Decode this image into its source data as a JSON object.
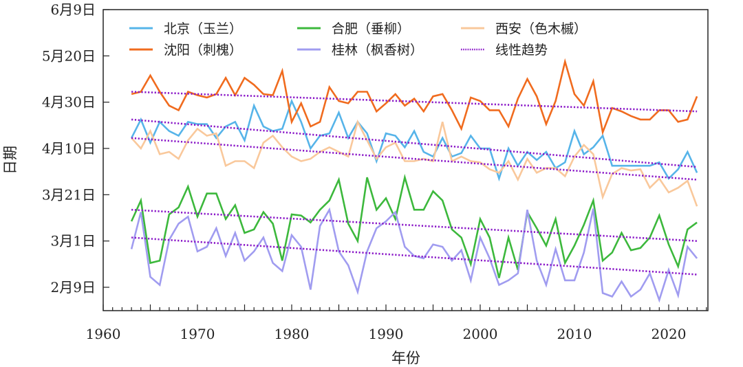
{
  "chart_data": {
    "type": "line",
    "title": "",
    "xlabel": "年份",
    "ylabel": "日期",
    "xlim": [
      1960,
      2024.2
    ],
    "ylim_days_since_feb9": [
      -4,
      120
    ],
    "y_unit": "days since 2月9日",
    "x_ticks": [
      1960,
      1970,
      1980,
      1990,
      2000,
      2010,
      2020
    ],
    "x_tick_labels": [
      "1960",
      "1970",
      "1980",
      "1990",
      "2000",
      "2010",
      "2020"
    ],
    "y_ticks": [
      0,
      20,
      40,
      60,
      80,
      100,
      120
    ],
    "y_tick_labels": [
      "2月9日",
      "3月1日",
      "3月21日",
      "4月10日",
      "4月30日",
      "5月20日",
      "6月9日"
    ],
    "grid": false,
    "legend_position": "top",
    "x": [
      1963,
      1964,
      1965,
      1966,
      1967,
      1968,
      1969,
      1970,
      1971,
      1972,
      1973,
      1974,
      1975,
      1976,
      1977,
      1978,
      1979,
      1980,
      1981,
      1982,
      1983,
      1984,
      1985,
      1986,
      1987,
      1988,
      1989,
      1990,
      1991,
      1992,
      1993,
      1994,
      1995,
      1996,
      1997,
      1998,
      1999,
      2000,
      2001,
      2002,
      2003,
      2004,
      2005,
      2006,
      2007,
      2008,
      2009,
      2010,
      2011,
      2012,
      2013,
      2014,
      2015,
      2016,
      2017,
      2018,
      2019,
      2020,
      2021,
      2022,
      2023
    ],
    "series": [
      {
        "name": "北京（玉兰）",
        "color": "#56b4e9",
        "style": "solid",
        "values": [
          64.5,
          72.5,
          62.5,
          71.5,
          67.5,
          65.5,
          71.5,
          70.5,
          70.5,
          64.5,
          69.5,
          71.5,
          63.5,
          78.5,
          69.5,
          67.5,
          68.5,
          80.5,
          71.5,
          60,
          65.5,
          66.5,
          75.5,
          64.5,
          71.5,
          66.5,
          54.5,
          66.5,
          65.5,
          60.5,
          67.5,
          58.5,
          56.5,
          64.5,
          56.5,
          58,
          65.5,
          60,
          60,
          47,
          60,
          52.5,
          58.5,
          55,
          58.5,
          51.5,
          54,
          67.5,
          57.5,
          60.5,
          65.5,
          52.5,
          52.5,
          52.5,
          52.5,
          52.5,
          54,
          47,
          51,
          58.5,
          49.5
        ]
      },
      {
        "name": "合肥（垂柳）",
        "color": "#3cb83c",
        "style": "solid",
        "values": [
          28.5,
          37.5,
          10.5,
          11.5,
          31.5,
          34.5,
          43.5,
          30.5,
          40.5,
          40.5,
          29.5,
          35.5,
          23.5,
          25,
          32.5,
          27.5,
          11.5,
          31.5,
          31,
          28,
          33.5,
          37.5,
          46.5,
          27.5,
          20,
          47.5,
          33.5,
          38.5,
          29.5,
          47.5,
          33.5,
          33.5,
          41.5,
          37.5,
          25,
          21.5,
          10,
          29.5,
          21.5,
          4,
          21.5,
          7.5,
          32.5,
          25.5,
          18,
          29.5,
          10.5,
          18,
          27,
          37.5,
          11.5,
          15,
          23.5,
          16,
          17,
          21.5,
          31,
          18.5,
          9,
          25,
          28
        ]
      },
      {
        "name": "西安（色木槭）",
        "color": "#f9c89b",
        "style": "solid",
        "values": [
          64.5,
          60,
          67.5,
          57.5,
          58.5,
          55.5,
          63.5,
          68.5,
          65.5,
          66.5,
          52.5,
          54.5,
          54.5,
          51.5,
          62.5,
          65.5,
          60.5,
          56.5,
          54.5,
          55.5,
          58.5,
          60.5,
          58.5,
          56.5,
          71.5,
          63.5,
          55.5,
          60.5,
          62.5,
          54.5,
          54.5,
          55.5,
          54.5,
          71.5,
          54.5,
          56.5,
          54.5,
          54,
          51,
          49.5,
          54.5,
          46.5,
          55.5,
          49.5,
          51.5,
          51.5,
          48,
          56.5,
          61.5,
          57.5,
          39,
          49,
          51.5,
          50.5,
          51,
          43,
          47,
          41,
          43,
          46,
          35
        ]
      },
      {
        "name": "沈阳（刺槐）",
        "color": "#f06b1e",
        "style": "solid",
        "values": [
          83.5,
          84.5,
          91.5,
          84.5,
          78.5,
          76.5,
          84.5,
          83,
          82,
          83.5,
          90.5,
          83,
          90.5,
          87.5,
          83.5,
          83,
          93.5,
          71.5,
          79.5,
          69.5,
          71.5,
          86.5,
          80.5,
          79.5,
          84.5,
          84.5,
          76,
          79.5,
          83.5,
          78.5,
          81.5,
          76,
          82.5,
          83.5,
          76.5,
          68.5,
          82,
          80.5,
          76.5,
          76.5,
          69.5,
          81.5,
          90,
          82.5,
          70.5,
          80.5,
          97.5,
          83.5,
          78.5,
          89,
          67,
          77.5,
          76,
          74,
          72.5,
          72.5,
          76.5,
          76.5,
          71.5,
          72.5,
          82.5
        ]
      },
      {
        "name": "桂林（枫香树）",
        "color": "#a09cf0",
        "style": "solid",
        "values": [
          16.5,
          32.5,
          4.5,
          1,
          20.5,
          27.5,
          30.5,
          15.5,
          17.5,
          25.5,
          13.5,
          23.5,
          11.5,
          15.5,
          21.5,
          10.5,
          7,
          22.5,
          17.5,
          -1,
          26.5,
          33.5,
          15.5,
          9.5,
          -2,
          15.5,
          25.5,
          28.5,
          32.5,
          17.5,
          13.5,
          12.5,
          18.5,
          17.5,
          11.5,
          16,
          3,
          21.5,
          12.5,
          1,
          3,
          6,
          33.5,
          11.5,
          1,
          16.5,
          3,
          3,
          15,
          34,
          -2.5,
          -4,
          2.5,
          -4,
          -1,
          6,
          -5.5,
          7.5,
          -3.5,
          17.5,
          12.5
        ]
      }
    ],
    "trend_lines": {
      "name": "线性趋势",
      "color": "#8a18c8",
      "style": "dotted",
      "lines": [
        {
          "for": "沈阳（刺槐）",
          "x": [
            1963,
            2023
          ],
          "y": [
            84.5,
            76
          ]
        },
        {
          "for": "北京（玉兰）",
          "x": [
            1963,
            2023
          ],
          "y": [
            72.5,
            52
          ]
        },
        {
          "for": "西安（色木槭）",
          "x": [
            1963,
            2023
          ],
          "y": [
            64.5,
            46.5
          ]
        },
        {
          "for": "合肥（垂柳）",
          "x": [
            1963,
            2023
          ],
          "y": [
            33.5,
            20
          ]
        },
        {
          "for": "桂林（枫香树）",
          "x": [
            1963,
            2023
          ],
          "y": [
            21.5,
            5.5
          ]
        }
      ]
    },
    "legend": [
      {
        "label": "北京（玉兰）",
        "color": "#56b4e9",
        "style": "solid"
      },
      {
        "label": "合肥（垂柳）",
        "color": "#3cb83c",
        "style": "solid"
      },
      {
        "label": "西安（色木槭）",
        "color": "#f9c89b",
        "style": "solid"
      },
      {
        "label": "沈阳（刺槐）",
        "color": "#f06b1e",
        "style": "solid"
      },
      {
        "label": "桂林（枫香树）",
        "color": "#a09cf0",
        "style": "solid"
      },
      {
        "label": "线性趋势",
        "color": "#8a18c8",
        "style": "dotted"
      }
    ]
  }
}
